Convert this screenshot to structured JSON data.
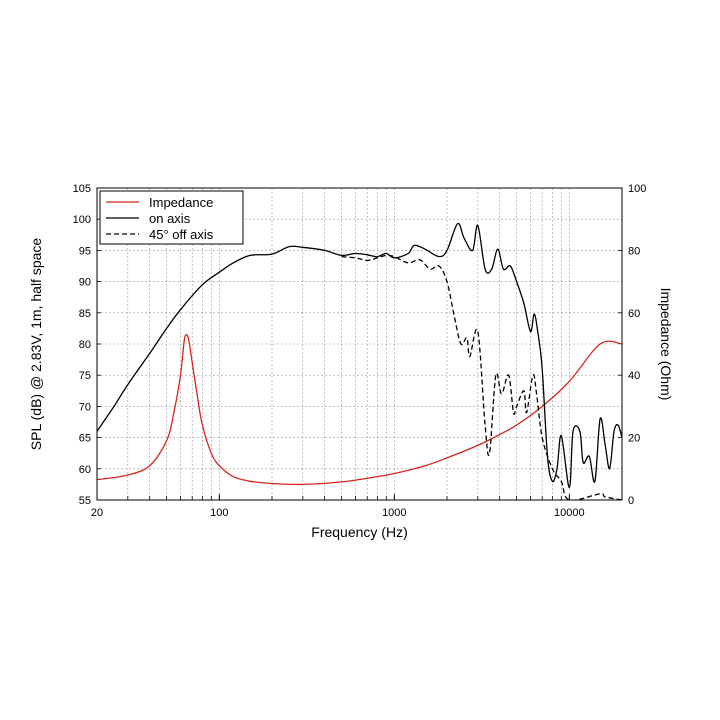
{
  "chart_data": {
    "type": "line",
    "xlabel": "Frequency (Hz)",
    "ylabel_left": "SPL (dB) @ 2.83V, 1m, half space",
    "ylabel_right": "Impedance (Ohm)",
    "x_scale": "log",
    "xlim": [
      20,
      20000
    ],
    "ylim_left": [
      55,
      105
    ],
    "ylim_right": [
      0,
      100
    ],
    "grid": true,
    "legend_position": "top-left",
    "x_tick_labels": [
      "20",
      "100",
      "1000",
      "10000"
    ],
    "x_ticks": [
      20,
      100,
      1000,
      10000
    ],
    "y_left_ticks": [
      55,
      60,
      65,
      70,
      75,
      80,
      85,
      90,
      95,
      100,
      105
    ],
    "y_right_ticks": [
      0,
      20,
      40,
      60,
      80,
      100
    ],
    "series": [
      {
        "name": "Impedance",
        "axis": "right",
        "color": "#d7261e",
        "dash": "solid",
        "points": [
          [
            20,
            6.5
          ],
          [
            30,
            8
          ],
          [
            40,
            11
          ],
          [
            50,
            19
          ],
          [
            55,
            28
          ],
          [
            60,
            40
          ],
          [
            63,
            51
          ],
          [
            65,
            53
          ],
          [
            67,
            51
          ],
          [
            70,
            44
          ],
          [
            75,
            33
          ],
          [
            80,
            24
          ],
          [
            90,
            15
          ],
          [
            100,
            11
          ],
          [
            120,
            7.5
          ],
          [
            150,
            6
          ],
          [
            200,
            5.3
          ],
          [
            300,
            5
          ],
          [
            500,
            5.8
          ],
          [
            800,
            7.5
          ],
          [
            1000,
            8.5
          ],
          [
            1500,
            11
          ],
          [
            2000,
            13.5
          ],
          [
            3000,
            17.5
          ],
          [
            4000,
            21
          ],
          [
            5000,
            24
          ],
          [
            7000,
            30
          ],
          [
            10000,
            38
          ],
          [
            15000,
            50
          ],
          [
            20000,
            50
          ]
        ]
      },
      {
        "name": "on axis",
        "axis": "left",
        "color": "#000000",
        "dash": "solid",
        "points": [
          [
            20,
            66
          ],
          [
            25,
            70
          ],
          [
            30,
            73.5
          ],
          [
            40,
            78.5
          ],
          [
            50,
            82.5
          ],
          [
            60,
            85.5
          ],
          [
            80,
            89.5
          ],
          [
            100,
            91.5
          ],
          [
            120,
            93
          ],
          [
            150,
            94.2
          ],
          [
            200,
            94.4
          ],
          [
            250,
            95.6
          ],
          [
            300,
            95.5
          ],
          [
            400,
            95
          ],
          [
            500,
            94.2
          ],
          [
            600,
            94.5
          ],
          [
            700,
            94.3
          ],
          [
            800,
            94
          ],
          [
            900,
            94.5
          ],
          [
            1000,
            93.8
          ],
          [
            1200,
            94.5
          ],
          [
            1300,
            95.8
          ],
          [
            1500,
            95.2
          ],
          [
            1800,
            94
          ],
          [
            2000,
            95
          ],
          [
            2300,
            99.3
          ],
          [
            2500,
            97
          ],
          [
            2800,
            95
          ],
          [
            3000,
            99
          ],
          [
            3300,
            92
          ],
          [
            3600,
            92
          ],
          [
            3900,
            95.2
          ],
          [
            4200,
            92
          ],
          [
            4600,
            92.5
          ],
          [
            5000,
            90
          ],
          [
            5500,
            86.5
          ],
          [
            6000,
            82
          ],
          [
            6300,
            84.8
          ],
          [
            6600,
            82
          ],
          [
            7000,
            76
          ],
          [
            7500,
            62
          ],
          [
            8000,
            58
          ],
          [
            8500,
            60
          ],
          [
            9000,
            65.3
          ],
          [
            10000,
            57
          ],
          [
            10500,
            66
          ],
          [
            11500,
            66
          ],
          [
            12000,
            61
          ],
          [
            13000,
            62
          ],
          [
            14000,
            58
          ],
          [
            15000,
            68
          ],
          [
            16000,
            64
          ],
          [
            17000,
            60
          ],
          [
            18000,
            66
          ],
          [
            19000,
            67
          ],
          [
            20000,
            65
          ]
        ]
      },
      {
        "name": "45° off axis",
        "axis": "left",
        "color": "#000000",
        "dash": "dashed",
        "points": [
          [
            500,
            94
          ],
          [
            600,
            93.8
          ],
          [
            700,
            93.4
          ],
          [
            800,
            93.8
          ],
          [
            900,
            94.2
          ],
          [
            1000,
            94
          ],
          [
            1200,
            93
          ],
          [
            1400,
            93.5
          ],
          [
            1600,
            92
          ],
          [
            1800,
            92.5
          ],
          [
            2000,
            90
          ],
          [
            2200,
            84.5
          ],
          [
            2400,
            80
          ],
          [
            2600,
            81
          ],
          [
            2700,
            78
          ],
          [
            3000,
            82
          ],
          [
            3300,
            67
          ],
          [
            3500,
            62.5
          ],
          [
            3800,
            75
          ],
          [
            4100,
            72
          ],
          [
            4500,
            75
          ],
          [
            4800,
            69
          ],
          [
            5000,
            70
          ],
          [
            5500,
            72.5
          ],
          [
            5700,
            69
          ],
          [
            6200,
            75
          ],
          [
            6500,
            72
          ],
          [
            7000,
            65
          ],
          [
            8000,
            60
          ],
          [
            9000,
            58
          ],
          [
            10000,
            55
          ],
          [
            15000,
            56
          ],
          [
            16000,
            55.5
          ],
          [
            20000,
            55
          ]
        ]
      }
    ]
  }
}
